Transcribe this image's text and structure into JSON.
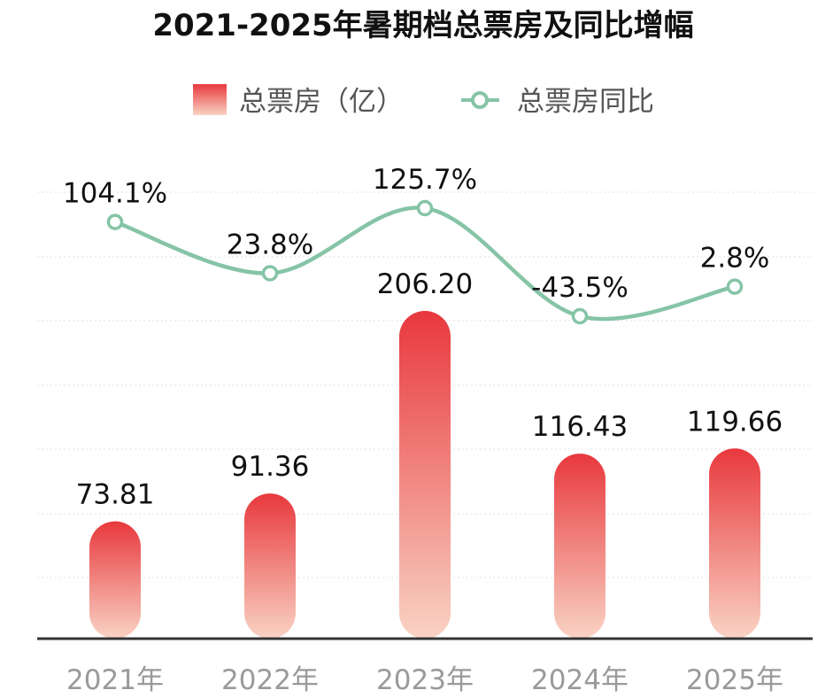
{
  "chart_data": {
    "type": "bar",
    "title": "2021-2025年暑期档总票房及同比增幅",
    "categories": [
      "2021年",
      "2022年",
      "2023年",
      "2024年",
      "2025年"
    ],
    "series": [
      {
        "name": "总票房（亿）",
        "type": "bar",
        "values": [
          73.81,
          91.36,
          206.2,
          116.43,
          119.66
        ],
        "labels": [
          "73.81",
          "91.36",
          "206.20",
          "116.43",
          "119.66"
        ]
      },
      {
        "name": "总票房同比",
        "type": "line",
        "values": [
          104.1,
          23.8,
          125.7,
          -43.5,
          2.8
        ],
        "labels": [
          "104.1%",
          "23.8%",
          "125.7%",
          "-43.5%",
          "2.8%"
        ]
      }
    ],
    "legend_position": "top-center",
    "grid": true,
    "colors": {
      "bar_top": "#e8383d",
      "bar_bottom": "#f9d3c4",
      "line": "#86c4a6",
      "axis": "#333333"
    }
  }
}
